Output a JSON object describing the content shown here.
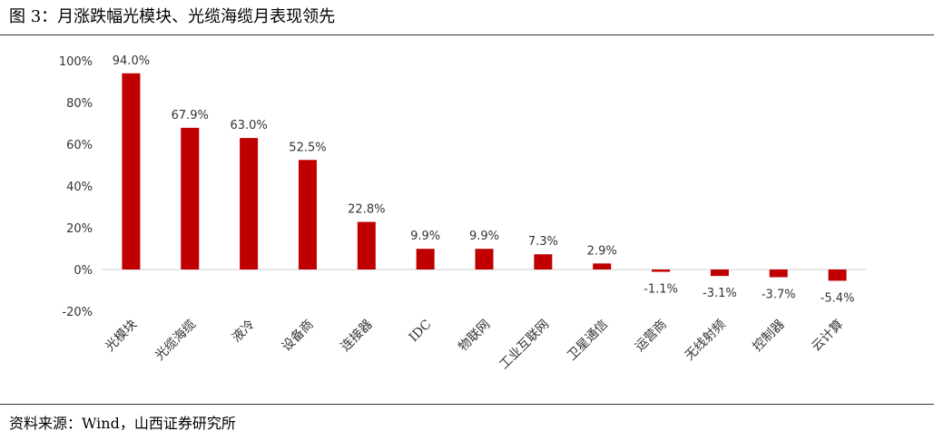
{
  "figure": {
    "title": "图 3：月涨跌幅光模块、光缆海缆月表现领先",
    "source": "资料来源：Wind，山西证券研究所"
  },
  "chart_data": {
    "type": "bar",
    "categories": [
      "光模块",
      "光缆海缆",
      "液冷",
      "设备商",
      "连接器",
      "IDC",
      "物联网",
      "工业互联网",
      "卫星通信",
      "运营商",
      "无线射频",
      "控制器",
      "云计算"
    ],
    "values": [
      94.0,
      67.9,
      63.0,
      52.5,
      22.8,
      9.9,
      9.9,
      7.3,
      2.9,
      -1.1,
      -3.1,
      -3.7,
      -5.4
    ],
    "data_labels": [
      "94.0%",
      "67.9%",
      "63.0%",
      "52.5%",
      "22.8%",
      "9.9%",
      "9.9%",
      "7.3%",
      "2.9%",
      "-1.1%",
      "-3.1%",
      "-3.7%",
      "-5.4%"
    ],
    "ylim": [
      -20,
      100
    ],
    "yticks": [
      -20,
      0,
      20,
      40,
      60,
      80,
      100
    ],
    "ytick_labels": [
      "-20%",
      "0%",
      "20%",
      "40%",
      "60%",
      "80%",
      "100%"
    ],
    "bar_color": "#C00000",
    "grid": false,
    "legend": "none"
  }
}
